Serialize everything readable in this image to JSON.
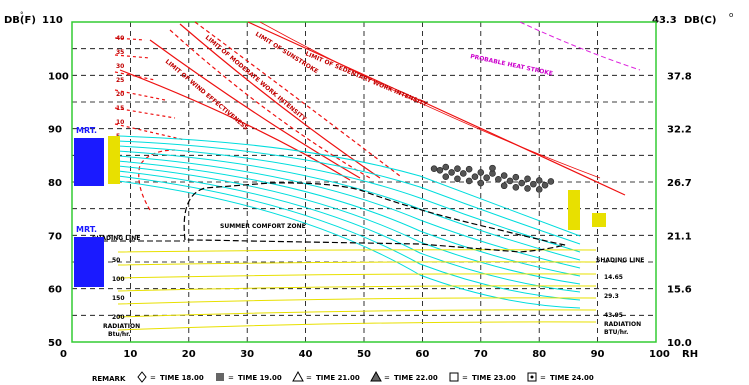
{
  "chart_data": {
    "type": "psychrometric-bioclimatic",
    "y_left_label": "DB(F)",
    "y_left_unit_mark": "°",
    "y_left_top_tick": "110",
    "y_right_label": "DB(C)",
    "y_right_unit_mark": "o",
    "y_right_top_tick": "43.3",
    "left_ticks": [
      "100",
      "90",
      "80",
      "70",
      "60",
      "50"
    ],
    "right_ticks": [
      "37.8",
      "32.2",
      "26.7",
      "21.1",
      "15.6",
      "10.0"
    ],
    "x_ticks": [
      "0",
      "10",
      "20",
      "30",
      "40",
      "50",
      "60",
      "70",
      "80",
      "90",
      "100"
    ],
    "x_label": "RH",
    "ylim_f": [
      50,
      110
    ],
    "xlim_rh": [
      0,
      100
    ],
    "grid": true,
    "annotations": {
      "probable_heat_stroke": "PROBABLE HEAT STROKE",
      "summer_comfort_zone": "SUMMER COMFORT ZONE",
      "shading_line_left": "SHADING LINE",
      "shading_line_right": "SHADING LINE",
      "mrt_upper": "MRT.",
      "mrt_lower": "MRT.",
      "radiation_left": "RADIATION",
      "radiation_left_unit": "Btu/hr.",
      "radiation_right": "RADIATION",
      "radiation_right_unit": "BTU/hr.",
      "red_diagonal_1": "LIMIT OF SEDENTARY WORK INTENSITY",
      "red_diagonal_2": "LIMIT OF MODERATE WORK INTENSITY",
      "red_diagonal_3": "LIMIT OF WIND EFFECTIVENESS",
      "red_diagonal_4": "LIMIT OF SUNSTROKE"
    },
    "radiation_values": [
      "50",
      "100",
      "150",
      "200"
    ],
    "radiation_values_right": [
      "14.65",
      "29.3",
      "43.95"
    ],
    "wind_speeds": [
      "40",
      "35",
      "30",
      "25",
      "20",
      "15",
      "10",
      "5"
    ],
    "observed_points": [
      {
        "rh": 62,
        "db": 82.5
      },
      {
        "rh": 63,
        "db": 82.2
      },
      {
        "rh": 64,
        "db": 82.8
      },
      {
        "rh": 65,
        "db": 81.8
      },
      {
        "rh": 66,
        "db": 82.5
      },
      {
        "rh": 67,
        "db": 81.6
      },
      {
        "rh": 68,
        "db": 82.4
      },
      {
        "rh": 69,
        "db": 81.0
      },
      {
        "rh": 70,
        "db": 81.8
      },
      {
        "rh": 71,
        "db": 80.8
      },
      {
        "rh": 72,
        "db": 81.6
      },
      {
        "rh": 73,
        "db": 80.5
      },
      {
        "rh": 74,
        "db": 81.2
      },
      {
        "rh": 75,
        "db": 80.2
      },
      {
        "rh": 76,
        "db": 80.9
      },
      {
        "rh": 77,
        "db": 79.8
      },
      {
        "rh": 78,
        "db": 80.6
      },
      {
        "rh": 79,
        "db": 79.6
      },
      {
        "rh": 80,
        "db": 80.3
      },
      {
        "rh": 81,
        "db": 79.4
      },
      {
        "rh": 82,
        "db": 80.1
      },
      {
        "rh": 66,
        "db": 80.6
      },
      {
        "rh": 70,
        "db": 79.8
      },
      {
        "rh": 74,
        "db": 79.3
      },
      {
        "rh": 78,
        "db": 78.8
      },
      {
        "rh": 72,
        "db": 82.6
      },
      {
        "rh": 68,
        "db": 80.2
      },
      {
        "rh": 76,
        "db": 79.0
      },
      {
        "rh": 80,
        "db": 78.6
      },
      {
        "rh": 64,
        "db": 81.0
      }
    ],
    "legend": {
      "remark": "REMARK",
      "items": [
        {
          "symbol": "diamond",
          "label": "TIME 18.00"
        },
        {
          "symbol": "filled-square",
          "label": "TIME 19.00"
        },
        {
          "symbol": "triangle",
          "label": "TIME 21.00"
        },
        {
          "symbol": "filled-triangle",
          "label": "TIME 22.00"
        },
        {
          "symbol": "square",
          "label": "TIME 23.00"
        },
        {
          "symbol": "square-dot",
          "label": "TIME 24.00"
        }
      ]
    },
    "colors": {
      "frame": "#33cc33",
      "grid": "#000000",
      "red": "#ee1111",
      "cyan": "#00dddd",
      "yellow": "#e8e000",
      "blue": "#1a1aff",
      "magenta": "#dd22dd",
      "points": "#555555"
    }
  }
}
